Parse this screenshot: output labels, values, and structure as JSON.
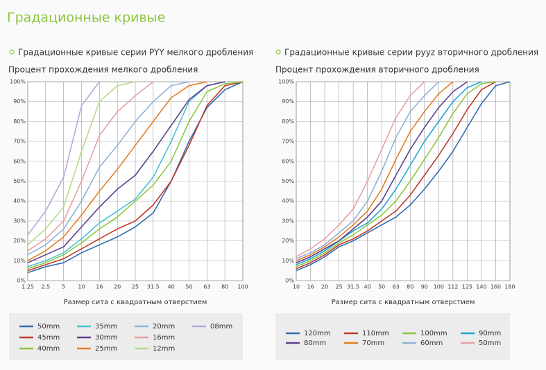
{
  "header": {
    "title": "Градационные кривые"
  },
  "chart_data": [
    {
      "type": "line",
      "title": "Градационные кривые серии PYY мелкого дробления",
      "ylabel": "Процент прохождения мелкого дробления",
      "xlabel": "Размер сита с квадратным отверстием",
      "categories": [
        "1.25",
        "2.5",
        "5",
        "10",
        "16",
        "20",
        "25",
        "31.5",
        "40",
        "50",
        "63",
        "80",
        "100"
      ],
      "ylim": [
        0,
        100
      ],
      "yticks": [
        {
          "value": 0,
          "label": "0%"
        },
        {
          "value": 10,
          "label": "10%"
        },
        {
          "value": 20,
          "label": "20%"
        },
        {
          "value": 30,
          "label": "30%"
        },
        {
          "value": 40,
          "label": "40%"
        },
        {
          "value": 50,
          "label": "50%"
        },
        {
          "value": 60,
          "label": "60%"
        },
        {
          "value": 70,
          "label": "70%"
        },
        {
          "value": 80,
          "label": "80%"
        },
        {
          "value": 90,
          "label": "90%"
        },
        {
          "value": 100,
          "label": "100%"
        }
      ],
      "grid": true,
      "series": [
        {
          "name": "50mm",
          "color": "#2f6db0",
          "values": [
            4,
            7,
            9,
            14,
            18,
            22,
            27,
            34,
            50,
            70,
            87,
            96,
            100
          ]
        },
        {
          "name": "45mm",
          "color": "#c0392b",
          "values": [
            5,
            8,
            11,
            16,
            21,
            26,
            30,
            38,
            50,
            68,
            88,
            98,
            100
          ]
        },
        {
          "name": "40mm",
          "color": "#8dc63f",
          "values": [
            6,
            9,
            13,
            19,
            26,
            32,
            40,
            48,
            60,
            80,
            95,
            99,
            100
          ]
        },
        {
          "name": "35mm",
          "color": "#4dbfd9",
          "values": [
            7,
            10,
            14,
            21,
            29,
            35,
            41,
            52,
            70,
            90,
            98,
            100,
            null
          ]
        },
        {
          "name": "30mm",
          "color": "#5b3f8c",
          "values": [
            9,
            13,
            17,
            27,
            37,
            46,
            53,
            65,
            78,
            91,
            98,
            100,
            null
          ]
        },
        {
          "name": "25mm",
          "color": "#e67e22",
          "values": [
            10,
            15,
            22,
            33,
            45,
            56,
            68,
            80,
            92,
            98,
            100,
            null,
            null
          ]
        },
        {
          "name": "20mm",
          "color": "#8fb0d8",
          "values": [
            13,
            18,
            26,
            40,
            57,
            68,
            80,
            90,
            98,
            100,
            null,
            null,
            null
          ]
        },
        {
          "name": "16mm",
          "color": "#e8a0a0",
          "values": [
            15,
            21,
            30,
            50,
            73,
            85,
            93,
            100,
            null,
            null,
            null,
            null,
            null
          ]
        },
        {
          "name": "12mm",
          "color": "#b5dc8a",
          "values": [
            18,
            26,
            37,
            65,
            90,
            98,
            100,
            null,
            null,
            null,
            null,
            null,
            null
          ]
        },
        {
          "name": "08mm",
          "color": "#b4a8d4",
          "values": [
            23,
            35,
            52,
            88,
            100,
            null,
            null,
            null,
            null,
            null,
            null,
            null,
            null
          ]
        }
      ]
    },
    {
      "type": "line",
      "title": "Градационные кривые серии pyyz вторичного дробления",
      "ylabel": "Процент прохождения вторичного дробления",
      "xlabel": "Размер сита с квадратным отверстием",
      "categories": [
        "10",
        "16",
        "20",
        "25",
        "31.5",
        "40",
        "50",
        "63",
        "80",
        "90",
        "100",
        "112",
        "125",
        "140",
        "160",
        "180"
      ],
      "ylim": [
        0,
        100
      ],
      "yticks": [
        {
          "value": 0,
          "label": "0%"
        },
        {
          "value": 10,
          "label": "10%"
        },
        {
          "value": 20,
          "label": "20%"
        },
        {
          "value": 30,
          "label": "30%"
        },
        {
          "value": 40,
          "label": "40%"
        },
        {
          "value": 50,
          "label": "50%"
        },
        {
          "value": 60,
          "label": "60%"
        },
        {
          "value": 70,
          "label": "70%"
        },
        {
          "value": 80,
          "label": "80%"
        },
        {
          "value": 90,
          "label": "90%"
        },
        {
          "value": 100,
          "label": "100%"
        }
      ],
      "grid": true,
      "series": [
        {
          "name": "120mm",
          "color": "#2f6db0",
          "values": [
            5,
            8,
            12,
            17,
            20,
            24,
            28,
            32,
            38,
            46,
            55,
            65,
            77,
            89,
            98,
            100
          ]
        },
        {
          "name": "110mm",
          "color": "#c0392b",
          "values": [
            6,
            9,
            13,
            18,
            21,
            25,
            30,
            35,
            43,
            53,
            63,
            74,
            86,
            96,
            100,
            null
          ]
        },
        {
          "name": "100mm",
          "color": "#8dc63f",
          "values": [
            7,
            10,
            14,
            19,
            23,
            28,
            33,
            40,
            50,
            61,
            72,
            84,
            94,
            99,
            100,
            null
          ]
        },
        {
          "name": "90mm",
          "color": "#1fa6d2",
          "values": [
            8,
            11,
            15,
            20,
            25,
            29,
            36,
            46,
            58,
            70,
            80,
            90,
            97,
            100,
            null,
            null
          ]
        },
        {
          "name": "80mm",
          "color": "#5b3f8c",
          "values": [
            9,
            12,
            16,
            20,
            26,
            32,
            40,
            53,
            66,
            77,
            87,
            95,
            100,
            null,
            null,
            null
          ]
        },
        {
          "name": "70mm",
          "color": "#e67e22",
          "values": [
            10,
            13,
            17,
            22,
            28,
            35,
            46,
            61,
            75,
            85,
            94,
            100,
            null,
            null,
            null,
            null
          ]
        },
        {
          "name": "60mm",
          "color": "#8fb0d8",
          "values": [
            11,
            14,
            18,
            24,
            30,
            40,
            55,
            72,
            85,
            93,
            100,
            null,
            null,
            null,
            null,
            null
          ]
        },
        {
          "name": "50mm",
          "color": "#e8a0a0",
          "values": [
            12,
            16,
            21,
            28,
            36,
            50,
            66,
            82,
            93,
            100,
            null,
            null,
            null,
            null,
            null,
            null
          ]
        }
      ]
    }
  ]
}
